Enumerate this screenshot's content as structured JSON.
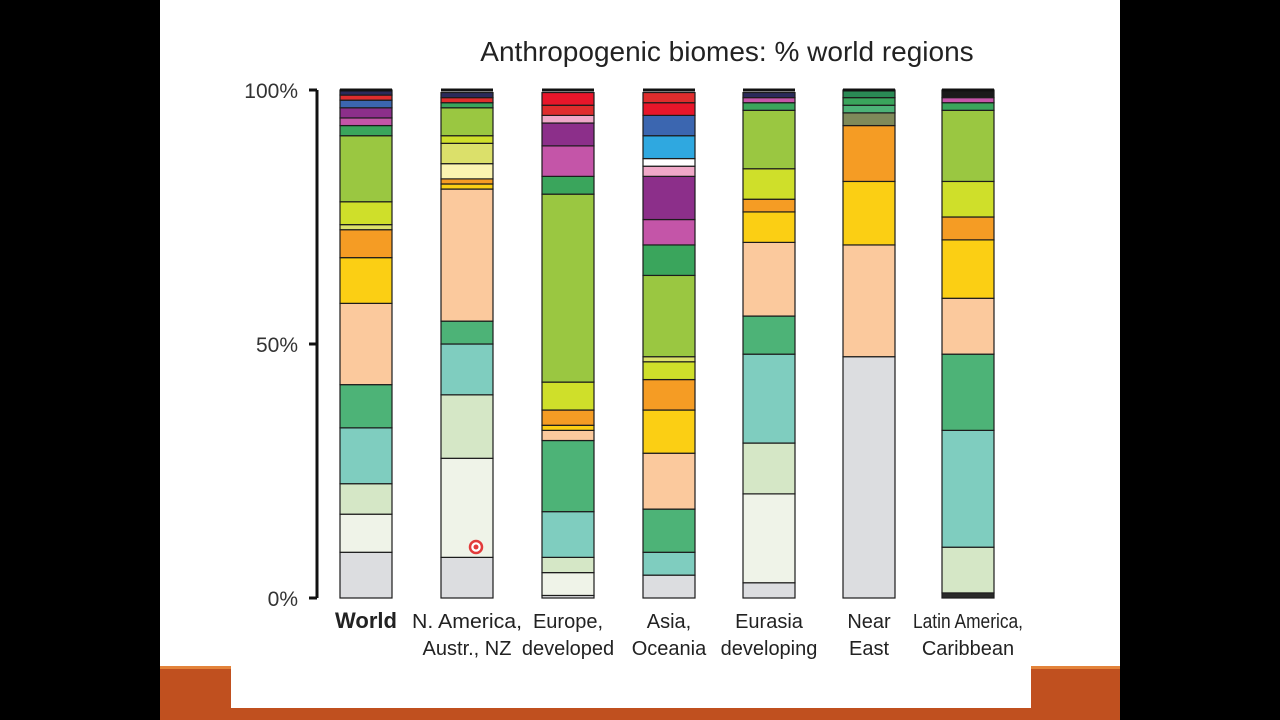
{
  "slide": {
    "background": "#ffffff",
    "footer_color": "#c0501f"
  },
  "chart_data": {
    "type": "bar",
    "stacked": true,
    "title": "Anthropogenic biomes: % world regions",
    "ylim": [
      0,
      100
    ],
    "y_ticks": [
      "0%",
      "50%",
      "100%"
    ],
    "y_tick_values": [
      0,
      50,
      100
    ],
    "categories": [
      [
        "World"
      ],
      [
        "N. America,",
        "Austr., NZ"
      ],
      [
        "Europe,",
        "developed"
      ],
      [
        "Asia,",
        "Oceania"
      ],
      [
        "Eurasia",
        "developing"
      ],
      [
        "Near",
        "East"
      ],
      [
        "Latin America,",
        "Caribbean"
      ]
    ],
    "category_bold": [
      true,
      false,
      false,
      false,
      false,
      false,
      false
    ],
    "stacks": [
      [
        {
          "value": 9,
          "color": "#dcdde0"
        },
        {
          "value": 7.5,
          "color": "#eff3e8"
        },
        {
          "value": 6,
          "color": "#d5e7c6"
        },
        {
          "value": 11,
          "color": "#7fcdbf"
        },
        {
          "value": 8.5,
          "color": "#4db377"
        },
        {
          "value": 16,
          "color": "#fbc99d"
        },
        {
          "value": 9,
          "color": "#fbcf14"
        },
        {
          "value": 5.5,
          "color": "#f59c24"
        },
        {
          "value": 1,
          "color": "#dbe06a"
        },
        {
          "value": 4.5,
          "color": "#cfdf2a"
        },
        {
          "value": 13,
          "color": "#9ac741"
        },
        {
          "value": 2,
          "color": "#3aa55c"
        },
        {
          "value": 1.5,
          "color": "#c455a8"
        },
        {
          "value": 2,
          "color": "#8c2f8a"
        },
        {
          "value": 1.5,
          "color": "#3b66b0"
        },
        {
          "value": 1,
          "color": "#df2d2d"
        },
        {
          "value": 1,
          "color": "#2a2a5a"
        }
      ],
      [
        {
          "value": 8,
          "color": "#dcdde0"
        },
        {
          "value": 19.5,
          "color": "#eff3e8"
        },
        {
          "value": 12.5,
          "color": "#d5e7c6"
        },
        {
          "value": 10,
          "color": "#7fcdbf"
        },
        {
          "value": 4.5,
          "color": "#4db377"
        },
        {
          "value": 26,
          "color": "#fbc99d"
        },
        {
          "value": 1,
          "color": "#fbcf14"
        },
        {
          "value": 1,
          "color": "#f59c24"
        },
        {
          "value": 3,
          "color": "#faf4b0"
        },
        {
          "value": 4,
          "color": "#dbe06a"
        },
        {
          "value": 1.5,
          "color": "#cfdf2a"
        },
        {
          "value": 5.5,
          "color": "#9ac741"
        },
        {
          "value": 1,
          "color": "#3aa55c"
        },
        {
          "value": 1,
          "color": "#df2d2d"
        },
        {
          "value": 1,
          "color": "#2a2a5a"
        }
      ],
      [
        {
          "value": 0.5,
          "color": "#dcdde0"
        },
        {
          "value": 4.5,
          "color": "#eff3e8"
        },
        {
          "value": 3,
          "color": "#d5e7c6"
        },
        {
          "value": 9,
          "color": "#7fcdbf"
        },
        {
          "value": 14,
          "color": "#4db377"
        },
        {
          "value": 2,
          "color": "#fbc99d"
        },
        {
          "value": 1,
          "color": "#fbcf14"
        },
        {
          "value": 3,
          "color": "#f59c24"
        },
        {
          "value": 5.5,
          "color": "#cfdf2a"
        },
        {
          "value": 37,
          "color": "#9ac741"
        },
        {
          "value": 3.5,
          "color": "#3aa55c"
        },
        {
          "value": 6,
          "color": "#c455a8"
        },
        {
          "value": 4.5,
          "color": "#8c2f8a"
        },
        {
          "value": 1.5,
          "color": "#f0a8c8"
        },
        {
          "value": 2,
          "color": "#df2d2d"
        },
        {
          "value": 2.5,
          "color": "#e8162a"
        }
      ],
      [
        {
          "value": 4.5,
          "color": "#dcdde0"
        },
        {
          "value": 4.5,
          "color": "#7fcdbf"
        },
        {
          "value": 8.5,
          "color": "#4db377"
        },
        {
          "value": 11,
          "color": "#fbc99d"
        },
        {
          "value": 8.5,
          "color": "#fbcf14"
        },
        {
          "value": 6,
          "color": "#f59c24"
        },
        {
          "value": 3.5,
          "color": "#cfdf2a"
        },
        {
          "value": 1,
          "color": "#dbe06a"
        },
        {
          "value": 16,
          "color": "#9ac741"
        },
        {
          "value": 6,
          "color": "#3aa55c"
        },
        {
          "value": 5,
          "color": "#c455a8"
        },
        {
          "value": 8.5,
          "color": "#8c2f8a"
        },
        {
          "value": 2,
          "color": "#f0a8c8"
        },
        {
          "value": 1.5,
          "color": "#ffffff"
        },
        {
          "value": 4.5,
          "color": "#2fa8e0"
        },
        {
          "value": 4,
          "color": "#3b66b0"
        },
        {
          "value": 2.5,
          "color": "#e8162a"
        },
        {
          "value": 2,
          "color": "#df2d2d"
        }
      ],
      [
        {
          "value": 3,
          "color": "#dcdde0"
        },
        {
          "value": 17.5,
          "color": "#eff3e8"
        },
        {
          "value": 10,
          "color": "#d5e7c6"
        },
        {
          "value": 17.5,
          "color": "#7fcdbf"
        },
        {
          "value": 7.5,
          "color": "#4db377"
        },
        {
          "value": 14.5,
          "color": "#fbc99d"
        },
        {
          "value": 6,
          "color": "#fbcf14"
        },
        {
          "value": 2.5,
          "color": "#f59c24"
        },
        {
          "value": 6,
          "color": "#cfdf2a"
        },
        {
          "value": 11.5,
          "color": "#9ac741"
        },
        {
          "value": 1.5,
          "color": "#3aa55c"
        },
        {
          "value": 1,
          "color": "#c455a8"
        },
        {
          "value": 1,
          "color": "#2a2a5a"
        }
      ],
      [
        {
          "value": 47.5,
          "color": "#dcdde0"
        },
        {
          "value": 22,
          "color": "#fbc99d"
        },
        {
          "value": 12.5,
          "color": "#fbcf14"
        },
        {
          "value": 11,
          "color": "#f59c24"
        },
        {
          "value": 2.5,
          "color": "#7f8a5a"
        },
        {
          "value": 1.5,
          "color": "#4db377"
        },
        {
          "value": 1.5,
          "color": "#3aa55c"
        },
        {
          "value": 1.5,
          "color": "#2a8a55"
        }
      ],
      [
        {
          "value": 1,
          "color": "#2a2a2a"
        },
        {
          "value": 9,
          "color": "#d5e7c6"
        },
        {
          "value": 23,
          "color": "#7fcdbf"
        },
        {
          "value": 15,
          "color": "#4db377"
        },
        {
          "value": 11,
          "color": "#fbc99d"
        },
        {
          "value": 11.5,
          "color": "#fbcf14"
        },
        {
          "value": 4.5,
          "color": "#f59c24"
        },
        {
          "value": 7,
          "color": "#cfdf2a"
        },
        {
          "value": 14,
          "color": "#9ac741"
        },
        {
          "value": 1.5,
          "color": "#3aa55c"
        },
        {
          "value": 1,
          "color": "#c455a8"
        },
        {
          "value": 1.5,
          "color": "#1a1a1a"
        }
      ]
    ]
  },
  "cursor": {
    "name": "pointer-cursor"
  }
}
